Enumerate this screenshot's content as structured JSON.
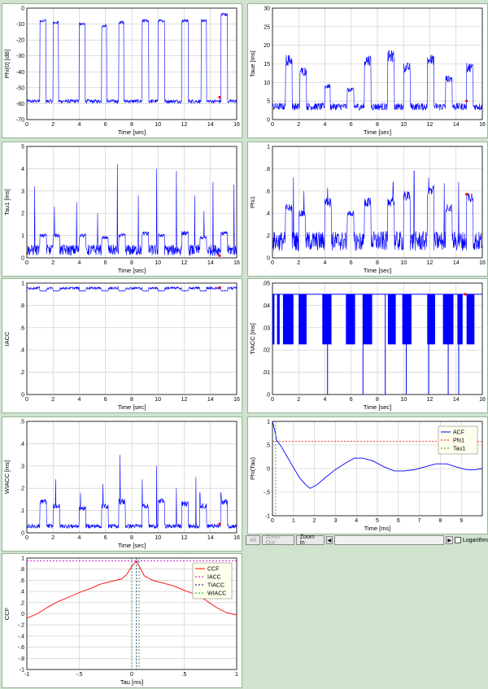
{
  "colors": {
    "trace": "#0000ff",
    "grid": "#c8c8c8",
    "marker": "#ff0000",
    "background": "#cfe3cf"
  },
  "toolbar": {
    "all_label": "All",
    "zoom_out_label": "Zoom Out",
    "zoom_in_label": "Zoom In",
    "log_label": "Logarithm"
  },
  "chart_data": [
    {
      "id": "phi0",
      "type": "line",
      "xlabel": "Time [sec]",
      "ylabel": "Phi(0) [dB]",
      "xlim": [
        0,
        16
      ],
      "ylim": [
        -70,
        0
      ],
      "xticks": [
        0,
        2,
        4,
        6,
        8,
        10,
        12,
        14,
        16
      ],
      "yticks": [
        0,
        -10,
        -20,
        -30,
        -40,
        -50,
        -60,
        -70
      ],
      "baseline": -58.5,
      "noise": 1.2,
      "bursts": [
        [
          1.0,
          1.45,
          -8
        ],
        [
          2.0,
          2.4,
          -9
        ],
        [
          4.0,
          4.45,
          -10
        ],
        [
          5.7,
          6.1,
          -11
        ],
        [
          7.0,
          7.4,
          -9
        ],
        [
          8.8,
          9.3,
          -8
        ],
        [
          10.0,
          10.5,
          -8
        ],
        [
          11.8,
          12.3,
          -8
        ],
        [
          13.3,
          13.7,
          -8
        ],
        [
          14.8,
          15.3,
          -4
        ]
      ],
      "marker": [
        14.7,
        -56
      ]
    },
    {
      "id": "taue",
      "type": "line",
      "xlabel": "Time [sec]",
      "ylabel": "Taue [ms]",
      "xlim": [
        0,
        16
      ],
      "ylim": [
        0,
        30
      ],
      "xticks": [
        0,
        2,
        4,
        6,
        8,
        10,
        12,
        14,
        16
      ],
      "yticks": [
        0,
        5,
        10,
        15,
        20,
        25,
        30
      ],
      "baseline": 3.5,
      "noise": 1.0,
      "bursts": [
        [
          1.0,
          1.5,
          16
        ],
        [
          2.1,
          2.6,
          13
        ],
        [
          4.0,
          4.4,
          9
        ],
        [
          5.7,
          6.2,
          8
        ],
        [
          7.0,
          7.5,
          16
        ],
        [
          8.8,
          9.3,
          17
        ],
        [
          10.0,
          10.5,
          14
        ],
        [
          11.8,
          12.3,
          16
        ],
        [
          13.2,
          13.7,
          11
        ],
        [
          14.8,
          15.3,
          14
        ]
      ],
      "marker": [
        14.8,
        5
      ]
    },
    {
      "id": "tau1",
      "type": "line",
      "xlabel": "Time [sec]",
      "ylabel": "Tau1 [ms]",
      "xlim": [
        0,
        16
      ],
      "ylim": [
        0,
        5
      ],
      "xticks": [
        0,
        2,
        4,
        6,
        8,
        10,
        12,
        14,
        16
      ],
      "yticks": [
        0,
        1,
        2,
        3,
        4,
        5
      ],
      "baseline": 0.35,
      "noise": 0.25,
      "bursts": [
        [
          1.0,
          1.5,
          1.0
        ],
        [
          2.0,
          2.5,
          1.0
        ],
        [
          4.0,
          4.5,
          1.0
        ],
        [
          5.7,
          6.2,
          0.9
        ],
        [
          7.0,
          7.5,
          1.0
        ],
        [
          8.8,
          9.3,
          1.1
        ],
        [
          10.0,
          10.5,
          1.0
        ],
        [
          11.8,
          12.3,
          1.1
        ],
        [
          13.2,
          13.7,
          0.9
        ],
        [
          14.8,
          15.3,
          1.1
        ]
      ],
      "spikes": [
        [
          0.6,
          3.2
        ],
        [
          2.1,
          2.3
        ],
        [
          3.8,
          2.5
        ],
        [
          5.4,
          2.0
        ],
        [
          6.9,
          4.2
        ],
        [
          8.5,
          2.8
        ],
        [
          9.9,
          4.0
        ],
        [
          11.4,
          3.9
        ],
        [
          12.8,
          2.8
        ],
        [
          13.5,
          2.1
        ],
        [
          14.2,
          3.4
        ],
        [
          15.8,
          3.3
        ]
      ],
      "marker": [
        14.7,
        0.1
      ]
    },
    {
      "id": "phi1",
      "type": "line",
      "xlabel": "Time [sec]",
      "ylabel": "Phi1",
      "xlim": [
        0,
        16
      ],
      "ylim": [
        0,
        1
      ],
      "xticks": [
        0,
        2,
        4,
        6,
        8,
        10,
        12,
        14,
        16
      ],
      "yticks": [
        0,
        0.2,
        0.4,
        0.6,
        0.8,
        1
      ],
      "baseline": 0.15,
      "noise": 0.09,
      "bursts": [
        [
          1.0,
          1.5,
          0.45
        ],
        [
          2.0,
          2.5,
          0.4
        ],
        [
          4.0,
          4.5,
          0.5
        ],
        [
          5.7,
          6.2,
          0.4
        ],
        [
          7.0,
          7.5,
          0.5
        ],
        [
          8.8,
          9.3,
          0.5
        ],
        [
          10.0,
          10.5,
          0.55
        ],
        [
          11.8,
          12.3,
          0.6
        ],
        [
          13.2,
          13.7,
          0.45
        ],
        [
          14.8,
          15.3,
          0.55
        ]
      ],
      "spikes": [
        [
          1.6,
          0.72
        ],
        [
          2.4,
          0.6
        ],
        [
          4.2,
          0.63
        ],
        [
          9.2,
          0.68
        ],
        [
          10.8,
          0.78
        ],
        [
          11.9,
          0.72
        ],
        [
          13.1,
          0.67
        ],
        [
          14.2,
          0.68
        ]
      ],
      "marker": [
        14.8,
        0.57
      ]
    },
    {
      "id": "iacc",
      "type": "line",
      "xlabel": "Time [sec]",
      "ylabel": "IACC",
      "xlim": [
        0,
        16
      ],
      "ylim": [
        0,
        1
      ],
      "xticks": [
        0,
        2,
        4,
        6,
        8,
        10,
        12,
        14,
        16
      ],
      "yticks": [
        0,
        0.2,
        0.4,
        0.6,
        0.8,
        1
      ],
      "baseline": 0.955,
      "noise": 0.012,
      "bursts": [
        [
          1.0,
          1.5,
          0.93
        ],
        [
          2.0,
          2.5,
          0.93
        ],
        [
          4.0,
          4.5,
          0.93
        ],
        [
          5.7,
          6.2,
          0.93
        ],
        [
          7.0,
          7.5,
          0.93
        ],
        [
          8.8,
          9.3,
          0.93
        ],
        [
          10.0,
          10.5,
          0.93
        ],
        [
          11.8,
          12.3,
          0.93
        ],
        [
          13.2,
          13.7,
          0.93
        ],
        [
          14.8,
          15.3,
          0.93
        ]
      ],
      "marker": [
        14.7,
        0.96
      ]
    },
    {
      "id": "tiacc",
      "type": "bar",
      "xlabel": "Time [sec]",
      "ylabel": "TIACC [ms]",
      "xlim": [
        0,
        16
      ],
      "ylim": [
        0,
        0.05
      ],
      "xticks": [
        0,
        2,
        4,
        6,
        8,
        10,
        12,
        14,
        16
      ],
      "yticks": [
        0,
        0.01,
        0.02,
        0.03,
        0.04,
        0.05
      ],
      "hline": 0.045,
      "low": 0.0225,
      "blocks": [
        [
          0.0,
          0.15
        ],
        [
          0.35,
          0.55
        ],
        [
          0.8,
          1.6
        ],
        [
          2.0,
          2.6
        ],
        [
          3.8,
          4.5
        ],
        [
          5.6,
          6.3
        ],
        [
          6.9,
          7.6
        ],
        [
          8.8,
          9.4
        ],
        [
          9.9,
          10.6
        ],
        [
          11.8,
          12.4
        ],
        [
          13.0,
          13.8
        ],
        [
          14.1,
          14.5
        ],
        [
          14.8,
          15.4
        ]
      ],
      "drops": [
        4.2,
        6.9,
        8.6,
        10.2,
        11.9,
        13.4,
        14.2
      ],
      "marker": [
        14.7,
        0.045
      ]
    },
    {
      "id": "wiacc",
      "type": "line",
      "xlabel": "Time [sec]",
      "ylabel": "WIACC [ms]",
      "xlim": [
        0,
        16
      ],
      "ylim": [
        0,
        0.5
      ],
      "xticks": [
        0,
        2,
        4,
        6,
        8,
        10,
        12,
        14,
        16
      ],
      "yticks": [
        0,
        0.1,
        0.2,
        0.3,
        0.4,
        0.5
      ],
      "baseline": 0.03,
      "noise": 0.01,
      "bursts": [
        [
          1.0,
          1.5,
          0.14
        ],
        [
          2.0,
          2.5,
          0.12
        ],
        [
          4.0,
          4.5,
          0.11
        ],
        [
          5.7,
          6.2,
          0.12
        ],
        [
          7.0,
          7.5,
          0.14
        ],
        [
          8.8,
          9.3,
          0.12
        ],
        [
          10.0,
          10.5,
          0.14
        ],
        [
          11.8,
          12.3,
          0.13
        ],
        [
          13.2,
          13.7,
          0.12
        ],
        [
          14.8,
          15.3,
          0.14
        ]
      ],
      "spikes": [
        [
          2.2,
          0.24
        ],
        [
          4.1,
          0.18
        ],
        [
          5.8,
          0.22
        ],
        [
          7.1,
          0.35
        ],
        [
          8.8,
          0.24
        ],
        [
          9.9,
          0.3
        ],
        [
          11.4,
          0.2
        ],
        [
          12.9,
          0.25
        ],
        [
          13.2,
          0.18
        ],
        [
          14.8,
          0.18
        ]
      ],
      "marker": [
        14.7,
        0.04
      ]
    },
    {
      "id": "acf",
      "type": "line",
      "xlabel": "Time [ms]",
      "ylabel": "Phi(Tau)",
      "xlim": [
        0,
        10
      ],
      "ylim": [
        -1,
        1
      ],
      "xticks": [
        0,
        1,
        2,
        3,
        4,
        5,
        6,
        7,
        8,
        9
      ],
      "yticks": [
        -1,
        -0.5,
        0,
        0.5,
        1
      ],
      "legend": [
        "ACF",
        "Phi1",
        "Tau1"
      ],
      "legend_position": "top-right",
      "phi1": 0.58,
      "tau1": 0.15,
      "x": [
        0,
        0.1,
        0.2,
        0.4,
        0.7,
        1.0,
        1.3,
        1.6,
        1.8,
        2.1,
        2.5,
        3.0,
        3.5,
        3.9,
        4.3,
        4.8,
        5.3,
        5.8,
        6.3,
        6.8,
        7.3,
        7.8,
        8.3,
        8.8,
        9.2,
        9.6,
        10.0
      ],
      "values": [
        1.0,
        0.82,
        0.6,
        0.48,
        0.25,
        0.02,
        -0.2,
        -0.35,
        -0.42,
        -0.35,
        -0.2,
        -0.02,
        0.12,
        0.22,
        0.22,
        0.16,
        0.04,
        -0.05,
        -0.05,
        -0.02,
        0.04,
        0.1,
        0.1,
        0.03,
        -0.02,
        -0.03,
        0.0
      ]
    },
    {
      "id": "ccf",
      "type": "line",
      "xlabel": "Tau [ms]",
      "ylabel": "CCF",
      "xlim": [
        -1,
        1
      ],
      "ylim": [
        -1,
        1
      ],
      "xticks": [
        -1,
        -0.5,
        0,
        0.5,
        1
      ],
      "yticks": [
        -1,
        -0.8,
        -0.6,
        -0.4,
        -0.2,
        0,
        0.2,
        0.4,
        0.6,
        0.8,
        1
      ],
      "legend": [
        "CCF",
        "IACC",
        "TIACC",
        "WIACC"
      ],
      "legend_position": "top-right",
      "iacc": 0.95,
      "tiacc": 0.045,
      "wiacc": [
        0.0,
        0.07
      ],
      "x": [
        -1.0,
        -0.9,
        -0.8,
        -0.7,
        -0.6,
        -0.5,
        -0.4,
        -0.3,
        -0.2,
        -0.1,
        -0.05,
        0.0,
        0.045,
        0.08,
        0.12,
        0.2,
        0.3,
        0.4,
        0.5,
        0.6,
        0.7,
        0.8,
        0.9,
        1.0
      ],
      "values": [
        -0.08,
        0.0,
        0.12,
        0.22,
        0.3,
        0.38,
        0.45,
        0.53,
        0.58,
        0.62,
        0.7,
        0.85,
        0.95,
        0.82,
        0.68,
        0.6,
        0.55,
        0.5,
        0.42,
        0.35,
        0.25,
        0.12,
        0.02,
        -0.02
      ]
    }
  ]
}
